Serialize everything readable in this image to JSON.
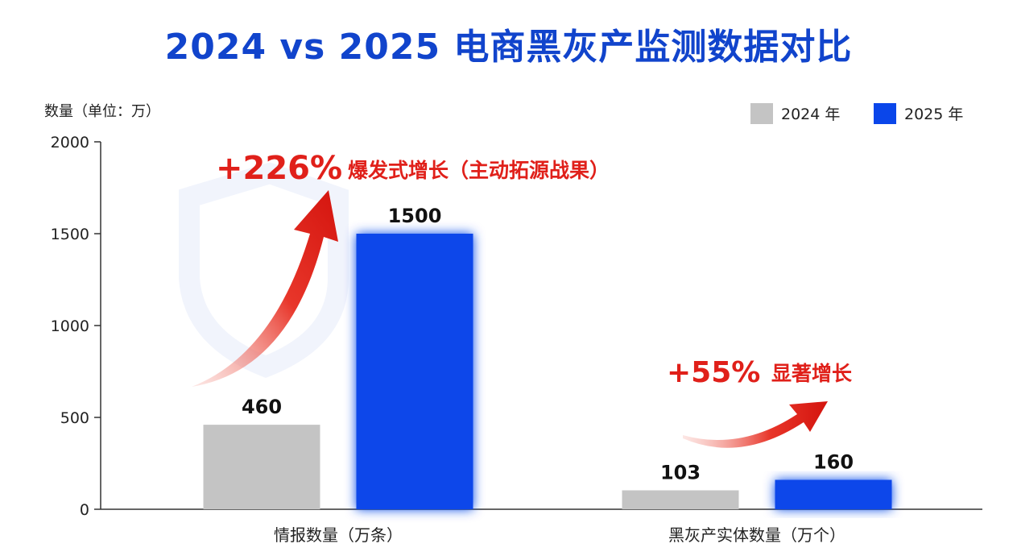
{
  "chart_data": {
    "type": "bar",
    "title": "2024 vs 2025 电商黑灰产监测数据对比",
    "ylabel": "数量（单位：万）",
    "xlabel": "",
    "ylim": [
      0,
      2000
    ],
    "yticks": [
      0,
      500,
      1000,
      1500,
      2000
    ],
    "grid": false,
    "legend_position": "top-right",
    "categories": [
      "情报数量（万条）",
      "黑灰产实体数量（万个）"
    ],
    "series": [
      {
        "name": "2024 年",
        "color": "#c4c4c4",
        "values": [
          460,
          103
        ],
        "labels": [
          "460",
          "103"
        ]
      },
      {
        "name": "2025 年",
        "color": "#0a46ea",
        "values": [
          1500,
          160
        ],
        "labels": [
          "1500",
          "160"
        ]
      }
    ],
    "annotations": [
      {
        "category_index": 0,
        "pct": "+226%",
        "text": "爆发式增长（主动拓源战果）"
      },
      {
        "category_index": 1,
        "pct": "+55%",
        "text": "显著增长"
      }
    ],
    "colors": {
      "title": "#1144cc",
      "annotation": "#e0201a"
    }
  }
}
